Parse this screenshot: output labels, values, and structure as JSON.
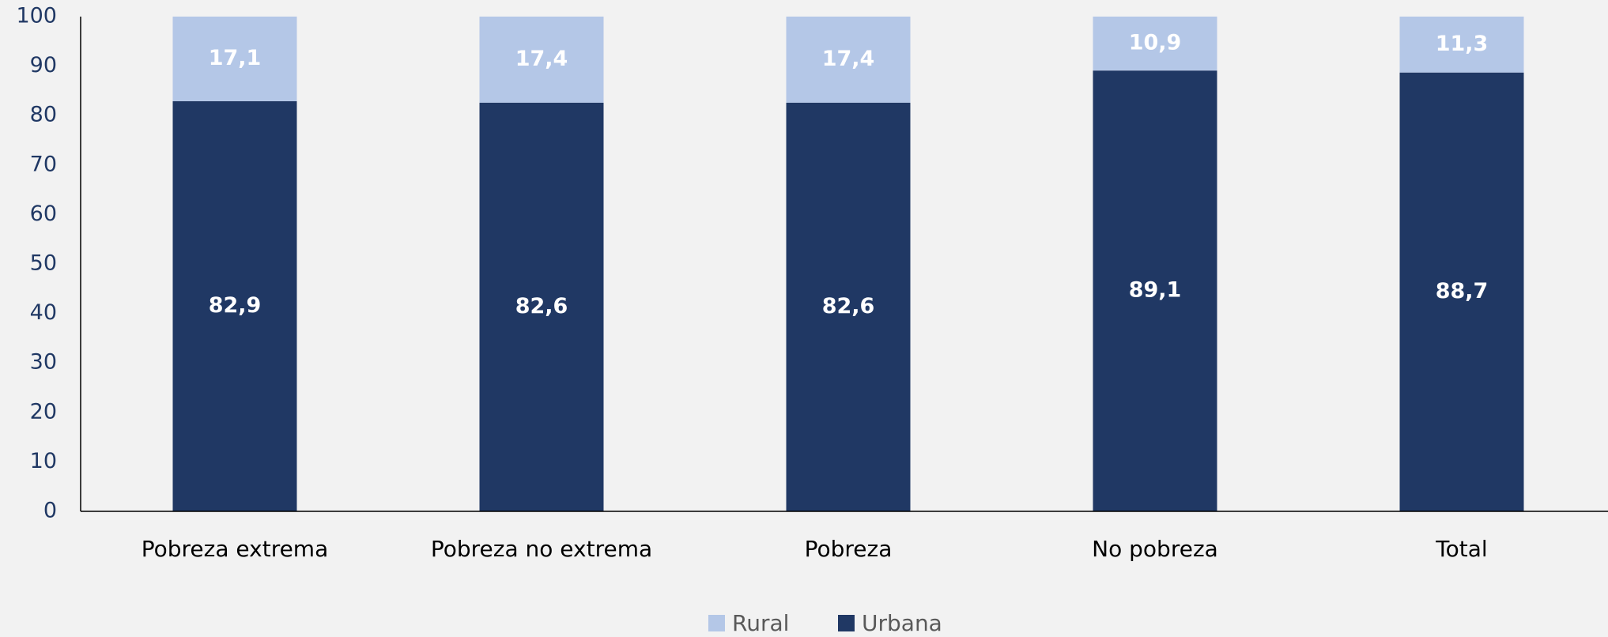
{
  "chart_data": {
    "type": "stacked_bar",
    "categories": [
      "Pobreza extrema",
      "Pobreza no extrema",
      "Pobreza",
      "No pobreza",
      "Total"
    ],
    "series": [
      {
        "name": "Rural",
        "color": "#b4c7e7",
        "values": [
          17.1,
          17.4,
          17.4,
          10.9,
          11.3
        ],
        "value_labels": [
          "17,1",
          "17,4",
          "17,4",
          "10,9",
          "11,3"
        ]
      },
      {
        "name": "Urbana",
        "color": "#203864",
        "values": [
          82.9,
          82.6,
          82.6,
          89.1,
          88.7
        ],
        "value_labels": [
          "82,9",
          "82,6",
          "82,6",
          "89,1",
          "88,7"
        ]
      }
    ],
    "ylim": [
      0,
      100
    ],
    "yticks": [
      0,
      10,
      20,
      30,
      40,
      50,
      60,
      70,
      80,
      90,
      100
    ],
    "grid": false,
    "legend": "bottom"
  }
}
